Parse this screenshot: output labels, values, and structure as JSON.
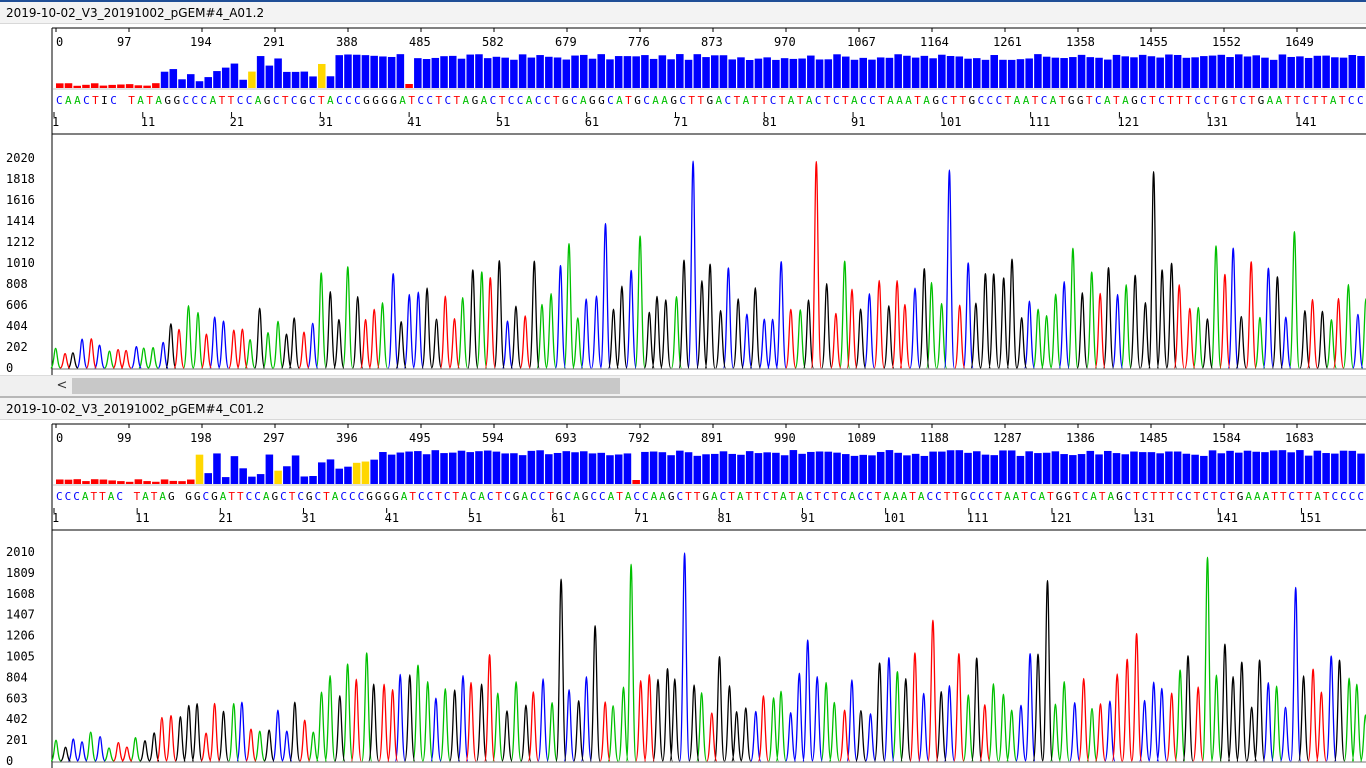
{
  "panels": [
    {
      "title": "2019-10-02_V3_20191002_pGEM#4_A01.2",
      "scan_labels": [
        "0",
        "97",
        "194",
        "291",
        "388",
        "485",
        "582",
        "679",
        "776",
        "873",
        "970",
        "1067",
        "1164",
        "1261",
        "1358",
        "1455",
        "1552",
        "1649"
      ],
      "base_labels": [
        "1",
        "11",
        "21",
        "31",
        "41",
        "51",
        "61",
        "71",
        "81",
        "91",
        "101",
        "111",
        "121",
        "131",
        "141"
      ],
      "y_labels": [
        "2020",
        "1818",
        "1616",
        "1414",
        "1212",
        "1010",
        "808",
        "606",
        "404",
        "202",
        "0"
      ],
      "sequence": "CAACTIC TATAGGCCCATTCCAGCTCGCTACCCGGGGATCCTCTAGACTCCACCTGCAGGCATGCAAGCTTGACTATTCTATACTCTACCTAAATAGCTTGCCCTAATCATGGTCATAGCTCTTTCCTGTCTGAATTCTTATCC"
    },
    {
      "title": "2019-10-02_V3_20191002_pGEM#4_C01.2",
      "scan_labels": [
        "0",
        "99",
        "198",
        "297",
        "396",
        "495",
        "594",
        "693",
        "792",
        "891",
        "990",
        "1089",
        "1188",
        "1287",
        "1386",
        "1485",
        "1584",
        "1683"
      ],
      "base_labels": [
        "1",
        "11",
        "21",
        "31",
        "41",
        "51",
        "61",
        "71",
        "81",
        "91",
        "101",
        "111",
        "121",
        "131",
        "141",
        "151"
      ],
      "y_labels": [
        "2010",
        "1809",
        "1608",
        "1407",
        "1206",
        "1005",
        "804",
        "603",
        "402",
        "201",
        "0"
      ],
      "sequence": "CCCATTAC TATAG GGCGATTCCAGCTCGCTACCCGGGGATCCTCTACACTCGACCTGCAGCCATACCAAGCTTGACTATTCTATACTCTCACCTAAATACCTTGCCCTAATCATGGTCATAGCTCTTTCCTCTCTGAAATTCTTATCCCC"
    }
  ],
  "colors": {
    "A": "#00c000",
    "C": "#0000ff",
    "G": "#000000",
    "T": "#ff0000",
    "qv": "#0000ff",
    "mid": "#ffd700"
  },
  "scroll_left_glyph": "<"
}
